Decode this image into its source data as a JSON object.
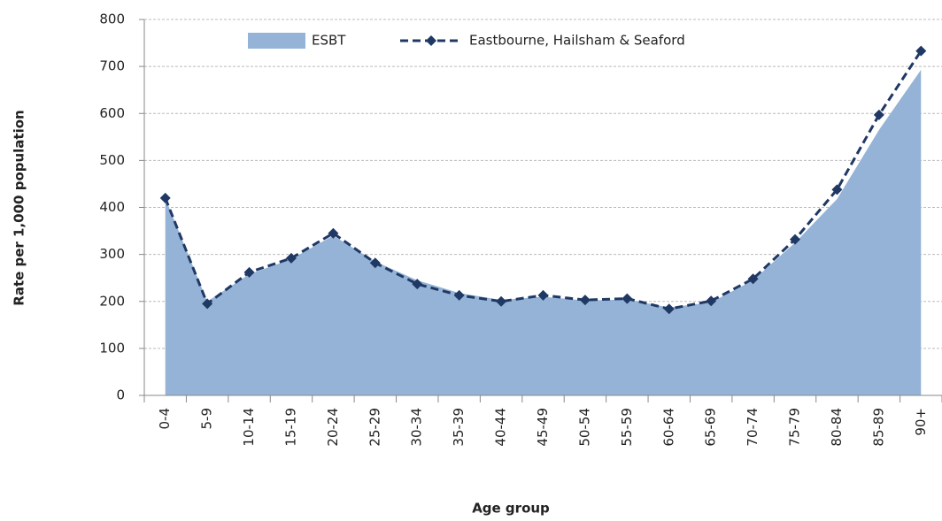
{
  "chart_data": {
    "type": "area-line",
    "x_label": "Age group",
    "y_label": "Rate per 1,000 population",
    "categories": [
      "0-4",
      "5-9",
      "10-14",
      "15-19",
      "20-24",
      "25-29",
      "30-34",
      "35-39",
      "40-44",
      "45-49",
      "50-54",
      "55-59",
      "60-64",
      "65-69",
      "70-74",
      "75-79",
      "80-84",
      "85-89",
      "90+"
    ],
    "series": [
      {
        "name": "ESBT",
        "type": "area",
        "color": "#95b3d7",
        "values": [
          420,
          200,
          258,
          290,
          340,
          285,
          245,
          218,
          203,
          210,
          202,
          204,
          187,
          198,
          245,
          325,
          418,
          565,
          693
        ]
      },
      {
        "name": "Eastbourne, Hailsham & Seaford",
        "type": "line",
        "color": "#1f3864",
        "dashed": true,
        "marker": "diamond",
        "values": [
          420,
          195,
          262,
          292,
          345,
          282,
          237,
          213,
          200,
          213,
          203,
          206,
          184,
          201,
          248,
          332,
          438,
          597,
          733
        ]
      }
    ],
    "ylim": [
      0,
      800
    ],
    "yticks": [
      0,
      100,
      200,
      300,
      400,
      500,
      600,
      700,
      800
    ],
    "grid": true,
    "legend": "top"
  }
}
